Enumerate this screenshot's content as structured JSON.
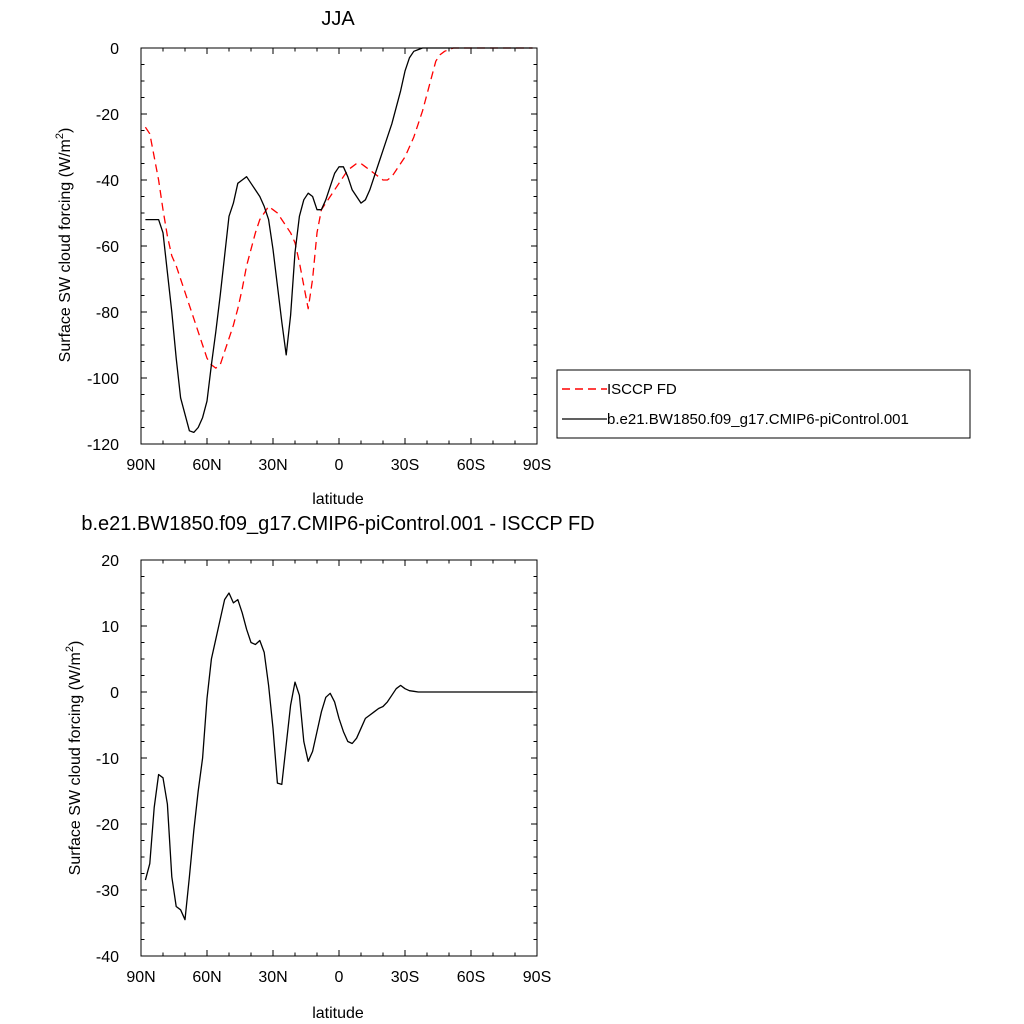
{
  "chart_data": [
    {
      "type": "line",
      "title": "JJA",
      "xlabel": "latitude",
      "ylabel": "Surface SW cloud forcing (W/m",
      "ylabel_sup": "2",
      "ylabel_tail": ")",
      "xlim": [
        90,
        -90
      ],
      "ylim": [
        -120,
        0
      ],
      "x_ticks": [
        90,
        60,
        30,
        0,
        -30,
        -60,
        -90
      ],
      "x_tick_labels": [
        "90N",
        "60N",
        "30N",
        "0",
        "30S",
        "60S",
        "90S"
      ],
      "y_ticks": [
        0,
        -20,
        -40,
        -60,
        -80,
        -100,
        -120
      ],
      "y_tick_labels": [
        "0",
        "-20",
        "-40",
        "-60",
        "-80",
        "-100",
        "-120"
      ],
      "grid": false,
      "legend": "right",
      "series": [
        {
          "name": "ISCCP FD",
          "color": "#ff0000",
          "dash": "dashed",
          "x": [
            88,
            86,
            84,
            82,
            80,
            78,
            76,
            74,
            72,
            70,
            68,
            66,
            64,
            62,
            60,
            58,
            56,
            54,
            52,
            50,
            48,
            46,
            44,
            42,
            40,
            38,
            36,
            34,
            32,
            30,
            28,
            26,
            24,
            22,
            20,
            18,
            16,
            14,
            12,
            10,
            8,
            6,
            4,
            2,
            0,
            -2,
            -4,
            -6,
            -8,
            -10,
            -12,
            -14,
            -16,
            -18,
            -20,
            -22,
            -24,
            -26,
            -28,
            -30,
            -32,
            -34,
            -36,
            -38,
            -40,
            -42,
            -44,
            -46,
            -48,
            -50,
            -52,
            -54,
            -56,
            -58,
            -60,
            -62,
            -64,
            -66,
            -68,
            -70,
            -72,
            -74,
            -76,
            -78,
            -80,
            -82,
            -84,
            -86,
            -88
          ],
          "y": [
            -24,
            -26,
            -33,
            -40,
            -49,
            -57,
            -63,
            -66,
            -70,
            -74,
            -78,
            -82,
            -86,
            -90,
            -94,
            -96,
            -97,
            -96,
            -92,
            -88,
            -84,
            -79,
            -73,
            -66,
            -61,
            -56,
            -52,
            -50,
            -48,
            -49,
            -50,
            -52,
            -54,
            -56,
            -59,
            -65,
            -72,
            -79,
            -70,
            -56,
            -49,
            -47,
            -45,
            -43,
            -41,
            -39,
            -37,
            -36,
            -35,
            -35,
            -36,
            -37,
            -38,
            -39,
            -40,
            -40,
            -39,
            -37,
            -35,
            -33,
            -30,
            -27,
            -23,
            -19,
            -14,
            -9,
            -4,
            -2,
            -1,
            -0.5,
            0,
            0,
            0,
            0,
            0,
            0,
            0,
            0,
            0,
            0,
            0,
            0,
            0,
            0,
            0,
            0,
            0,
            0,
            0
          ]
        },
        {
          "name": "b.e21.BW1850.f09_g17.CMIP6-piControl.001",
          "color": "#000000",
          "dash": "solid",
          "x": [
            88,
            86,
            84,
            82,
            80,
            78,
            76,
            74,
            72,
            70,
            68,
            66,
            64,
            62,
            60,
            58,
            56,
            54,
            52,
            50,
            48,
            46,
            44,
            42,
            40,
            38,
            36,
            34,
            32,
            30,
            28,
            26,
            24,
            22,
            20,
            18,
            16,
            14,
            12,
            10,
            8,
            6,
            4,
            2,
            0,
            -2,
            -4,
            -6,
            -8,
            -10,
            -12,
            -14,
            -16,
            -18,
            -20,
            -22,
            -24,
            -26,
            -28,
            -30,
            -32,
            -34,
            -36,
            -38,
            -40,
            -42,
            -44,
            -46,
            -48,
            -50,
            -52,
            -54,
            -56,
            -58,
            -60,
            -62,
            -64,
            -66,
            -68,
            -70,
            -72,
            -74,
            -76,
            -78,
            -80,
            -82,
            -84,
            -86,
            -88
          ],
          "y": [
            -52,
            -52,
            -52,
            -52,
            -56,
            -68,
            -80,
            -94,
            -106,
            -111,
            -116,
            -116.5,
            -115,
            -112,
            -107,
            -96,
            -86,
            -75,
            -63,
            -51,
            -47,
            -41,
            -40,
            -39,
            -41,
            -43,
            -45,
            -48,
            -52,
            -61,
            -72,
            -83,
            -93,
            -81,
            -62,
            -51,
            -46,
            -44,
            -45,
            -49,
            -49,
            -46,
            -42,
            -38,
            -36,
            -36,
            -39,
            -43,
            -45,
            -47,
            -46,
            -43,
            -39,
            -35,
            -31,
            -27,
            -23,
            -18,
            -13,
            -7,
            -3,
            -1,
            -0.5,
            0,
            0,
            0,
            0,
            0,
            0,
            0,
            0,
            0,
            0,
            0,
            0,
            0,
            0,
            0,
            0,
            0,
            0,
            0,
            0,
            0,
            0,
            0,
            0,
            0,
            0
          ]
        }
      ]
    },
    {
      "type": "line",
      "title": "b.e21.BW1850.f09_g17.CMIP6-piControl.001 - ISCCP FD",
      "xlabel": "latitude",
      "ylabel": "Surface SW cloud forcing (W/m",
      "ylabel_sup": "2",
      "ylabel_tail": ")",
      "xlim": [
        90,
        -90
      ],
      "ylim": [
        -40,
        20
      ],
      "x_ticks": [
        90,
        60,
        30,
        0,
        -30,
        -60,
        -90
      ],
      "x_tick_labels": [
        "90N",
        "60N",
        "30N",
        "0",
        "30S",
        "60S",
        "90S"
      ],
      "y_ticks": [
        20,
        10,
        0,
        -10,
        -20,
        -30,
        -40
      ],
      "y_tick_labels": [
        "20",
        "10",
        "0",
        "-10",
        "-20",
        "-30",
        "-40"
      ],
      "grid": false,
      "series": [
        {
          "color": "#000000",
          "dash": "solid",
          "x": [
            88,
            86,
            84,
            82,
            80,
            78,
            76,
            74,
            72,
            70,
            68,
            66,
            64,
            62,
            60,
            58,
            56,
            54,
            52,
            50,
            48,
            46,
            44,
            42,
            40,
            38,
            36,
            34,
            32,
            30,
            28,
            26,
            24,
            22,
            20,
            18,
            16,
            14,
            12,
            10,
            8,
            6,
            4,
            2,
            0,
            -2,
            -4,
            -6,
            -8,
            -10,
            -12,
            -14,
            -16,
            -18,
            -20,
            -22,
            -24,
            -26,
            -28,
            -30,
            -32,
            -34,
            -36,
            -38,
            -40,
            -42,
            -44,
            -46,
            -48,
            -50,
            -52,
            -54,
            -56,
            -58,
            -60,
            -62,
            -64,
            -66,
            -68,
            -70,
            -72,
            -74,
            -76,
            -78,
            -80,
            -82,
            -84,
            -86,
            -88
          ],
          "y": [
            -28.5,
            -26,
            -17.5,
            -12.5,
            -13,
            -17,
            -28,
            -32.5,
            -33,
            -34.5,
            -28,
            -21,
            -15,
            -10,
            -1,
            5,
            8,
            11,
            14,
            15,
            13.5,
            14,
            12,
            9.5,
            7.5,
            7.2,
            7.8,
            6,
            1,
            -5.5,
            -13.8,
            -14,
            -8,
            -2,
            1.5,
            -0.5,
            -7.5,
            -10.5,
            -9,
            -6,
            -3,
            -0.8,
            -0.2,
            -1.5,
            -4,
            -6,
            -7.5,
            -7.8,
            -7,
            -5.5,
            -4,
            -3.5,
            -3,
            -2.5,
            -2.2,
            -1.5,
            -0.5,
            0.5,
            1,
            0.5,
            0.2,
            0.1,
            0,
            0,
            0,
            0,
            0,
            0,
            0,
            0,
            0,
            0,
            0,
            0,
            0,
            0,
            0,
            0,
            0,
            0,
            0,
            0,
            0,
            0,
            0,
            0,
            0,
            0,
            0
          ]
        }
      ]
    }
  ]
}
